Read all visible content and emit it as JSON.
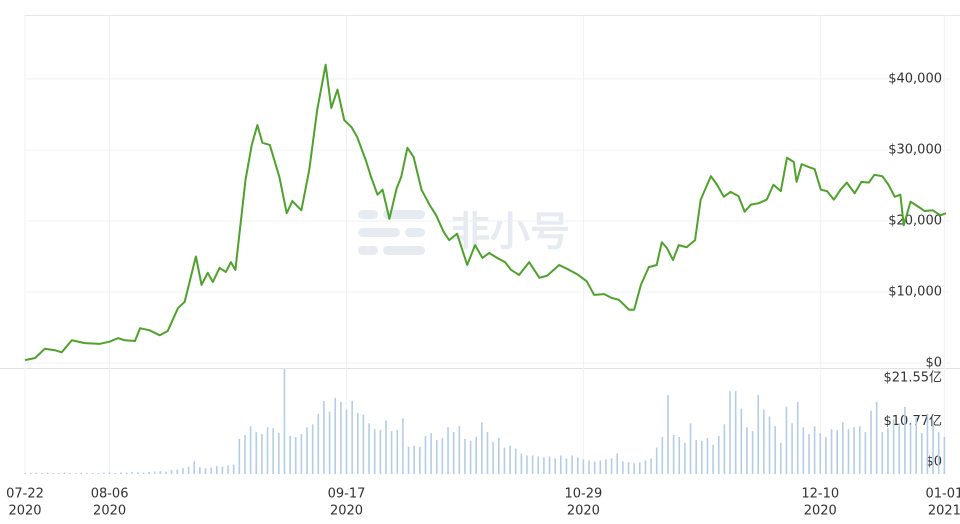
{
  "chart_data": [
    {
      "type": "line",
      "watermark": "非小号",
      "color": "#4ea22c",
      "grid": true,
      "x": [
        0,
        1.8,
        3.5,
        5.3,
        6.5,
        8.3,
        10.6,
        13.3,
        15,
        16.5,
        17.7,
        19.5,
        20.4,
        22.1,
        23.9,
        25.3,
        27.1,
        28.3,
        30.3,
        31.3,
        32.4,
        33.3,
        34.5,
        35.6,
        36.5,
        37.3,
        39.1,
        40.2,
        41.2,
        42.1,
        43.4,
        45.1,
        46.4,
        47.4,
        49,
        50.4,
        51.8,
        53.3,
        54.3,
        55.4,
        56.6,
        57.9,
        58.9,
        60.4,
        61.4,
        62.5,
        63.4,
        64.6,
        65.9,
        66.7,
        67.8,
        68.9,
        70.3,
        71.7,
        72.9,
        74.2,
        75.2,
        76.6,
        78.4,
        79.8,
        81.1,
        82.3,
        83.7,
        85.1,
        86.2,
        87.6,
        89.4,
        91.2,
        92.6,
        94.7,
        96.5,
        97.9,
        99.6,
        100.9,
        102.7,
        103.9,
        105.3,
        107.1,
        108,
        109.2,
        110.6,
        112,
        112.9,
        113.8,
        114.9,
        115.9,
        117.3,
        118.8,
        119.8,
        121.6,
        122.7,
        123.9,
        125.1,
        126.5,
        127.6,
        128.7,
        130.1,
        131.5,
        132.7,
        134,
        135.1,
        136.3,
        136.8,
        137.7,
        138.9,
        140,
        141.1,
        142.2,
        143.4,
        144.6,
        145.7,
        147.1,
        148.3,
        149.6,
        150.6,
        152,
        153.1,
        154.2,
        155.2,
        155.8,
        157,
        158.4,
        159.5,
        160.9,
        162.3,
        163.3
      ],
      "values": [
        400,
        700,
        2000,
        1800,
        1500,
        3200,
        2800,
        2700,
        3000,
        3500,
        3200,
        3100,
        4900,
        4600,
        3900,
        4500,
        7700,
        8600,
        15000,
        11000,
        12700,
        11400,
        13400,
        12800,
        14200,
        13100,
        25800,
        30700,
        33500,
        31000,
        30700,
        26200,
        21100,
        22800,
        21500,
        27200,
        35600,
        42000,
        35900,
        38500,
        34200,
        33200,
        31800,
        28600,
        26100,
        23700,
        24400,
        20300,
        24600,
        26200,
        30300,
        29000,
        24400,
        22300,
        20800,
        18500,
        17300,
        18200,
        13800,
        16600,
        14800,
        15500,
        14800,
        14200,
        13100,
        12400,
        14200,
        12000,
        12300,
        13800,
        13100,
        12500,
        11500,
        9600,
        9700,
        9200,
        8900,
        7500,
        7500,
        11000,
        13500,
        13800,
        17000,
        16200,
        14500,
        16600,
        16300,
        17300,
        23000,
        26300,
        25100,
        23400,
        24100,
        23500,
        21300,
        22300,
        22500,
        23000,
        25100,
        24200,
        28900,
        28300,
        25500,
        28000,
        27600,
        27300,
        24400,
        24200,
        23000,
        24400,
        25400,
        23900,
        25500,
        25400,
        26500,
        26300,
        25100,
        23400,
        23700,
        19400,
        22700,
        22000,
        21400,
        21500,
        20800,
        21100
      ],
      "xlim": [
        0,
        164
      ],
      "xticks": [
        {
          "value": 0,
          "label": "07-22"
        },
        {
          "value": 15,
          "label": "08-06"
        },
        {
          "value": 57,
          "label": "09-17"
        },
        {
          "value": 99,
          "label": "10-29"
        },
        {
          "value": 141,
          "label": "12-10"
        },
        {
          "value": 163,
          "label": "01-01"
        }
      ],
      "xtick_years": [
        "2020",
        "2020",
        "2020",
        "2020",
        "2020",
        "2021"
      ],
      "ylim": [
        0,
        49000
      ],
      "yticks": [
        {
          "value": 0,
          "label": "$0"
        },
        {
          "value": 10000,
          "label": "$10,000"
        },
        {
          "value": 20000,
          "label": "$20,000"
        },
        {
          "value": 30000,
          "label": "$30,000"
        },
        {
          "value": 40000,
          "label": "$40,000"
        }
      ]
    },
    {
      "type": "bar",
      "color": "#b3cde9",
      "x": [
        0,
        1,
        2,
        3,
        4,
        5,
        6,
        7,
        8,
        9,
        10,
        11,
        12,
        13,
        14,
        15,
        16,
        17,
        18,
        19,
        20,
        21,
        22,
        23,
        24,
        25,
        26,
        27,
        28,
        29,
        30,
        31,
        32,
        33,
        34,
        35,
        36,
        37,
        38,
        39,
        40,
        41,
        42,
        43,
        44,
        45,
        46,
        47,
        48,
        49,
        50,
        51,
        52,
        53,
        54,
        55,
        56,
        57,
        58,
        59,
        60,
        61,
        62,
        63,
        64,
        65,
        66,
        67,
        68,
        69,
        70,
        71,
        72,
        73,
        74,
        75,
        76,
        77,
        78,
        79,
        80,
        81,
        82,
        83,
        84,
        85,
        86,
        87,
        88,
        89,
        90,
        91,
        92,
        93,
        94,
        95,
        96,
        97,
        98,
        99,
        100,
        101,
        102,
        103,
        104,
        105,
        106,
        107,
        108,
        109,
        110,
        111,
        112,
        113,
        114,
        115,
        116,
        117,
        118,
        119,
        120,
        121,
        122,
        123,
        124,
        125,
        126,
        127,
        128,
        129,
        130,
        131,
        132,
        133,
        134,
        135,
        136,
        137,
        138,
        139,
        140,
        141,
        142,
        143,
        144,
        145,
        146,
        147,
        148,
        149,
        150,
        151,
        152,
        153,
        154,
        155,
        156,
        157,
        158,
        159,
        160,
        161,
        162,
        163
      ],
      "values": [
        0.2,
        0.2,
        0.3,
        0.2,
        0.3,
        0.2,
        0.2,
        0.3,
        0.2,
        0.2,
        0.3,
        0.2,
        0.2,
        0.2,
        0.3,
        0.3,
        0.2,
        0.3,
        0.3,
        0.4,
        0.3,
        0.3,
        0.4,
        0.5,
        0.6,
        0.5,
        0.8,
        0.9,
        1.2,
        1.5,
        2.6,
        1.4,
        1.2,
        1.3,
        1.6,
        1.5,
        1.8,
        1.9,
        7.2,
        8.0,
        9.8,
        8.6,
        8.2,
        9.6,
        9.4,
        8.4,
        21.55,
        7.8,
        7.6,
        8.2,
        9.6,
        10.2,
        12.4,
        15.0,
        12.8,
        15.6,
        14.8,
        13.2,
        15.0,
        12.6,
        12.2,
        10.4,
        9.2,
        9.0,
        11.0,
        8.8,
        9.0,
        11.4,
        5.6,
        5.8,
        5.6,
        7.8,
        8.4,
        7.0,
        7.4,
        9.6,
        8.6,
        9.8,
        7.2,
        6.8,
        7.6,
        10.6,
        8.6,
        6.6,
        7.4,
        5.4,
        5.8,
        5.2,
        4.2,
        3.8,
        3.8,
        3.6,
        3.4,
        3.6,
        3.2,
        3.8,
        3.2,
        3.8,
        3.4,
        3.0,
        2.8,
        2.6,
        2.8,
        3.0,
        3.2,
        4.2,
        2.6,
        2.4,
        2.2,
        2.4,
        2.8,
        3.2,
        5.4,
        7.6,
        16.2,
        8.0,
        7.6,
        6.4,
        10.4,
        7.0,
        6.8,
        7.4,
        6.0,
        7.8,
        10.2,
        17.0,
        17.0,
        13.4,
        9.6,
        8.8,
        16.2,
        13.2,
        11.8,
        9.8,
        6.4,
        13.8,
        10.4,
        14.8,
        9.6,
        8.2,
        9.8,
        8.4,
        7.6,
        9.2,
        9.0,
        10.6,
        9.2,
        9.6,
        9.8,
        8.6,
        13.0,
        14.8,
        8.6,
        9.4,
        11.2,
        10.4,
        13.8,
        10.2,
        11.6,
        8.4,
        12.4,
        11.0,
        8.6,
        7.6
      ],
      "xlim": [
        0,
        164
      ],
      "ylim": [
        0,
        21.55
      ],
      "yticks": [
        {
          "value": 0,
          "label": "$0"
        },
        {
          "value": 10.77,
          "label": "$10.77亿"
        },
        {
          "value": 21.55,
          "label": "$21.55亿"
        }
      ]
    }
  ]
}
